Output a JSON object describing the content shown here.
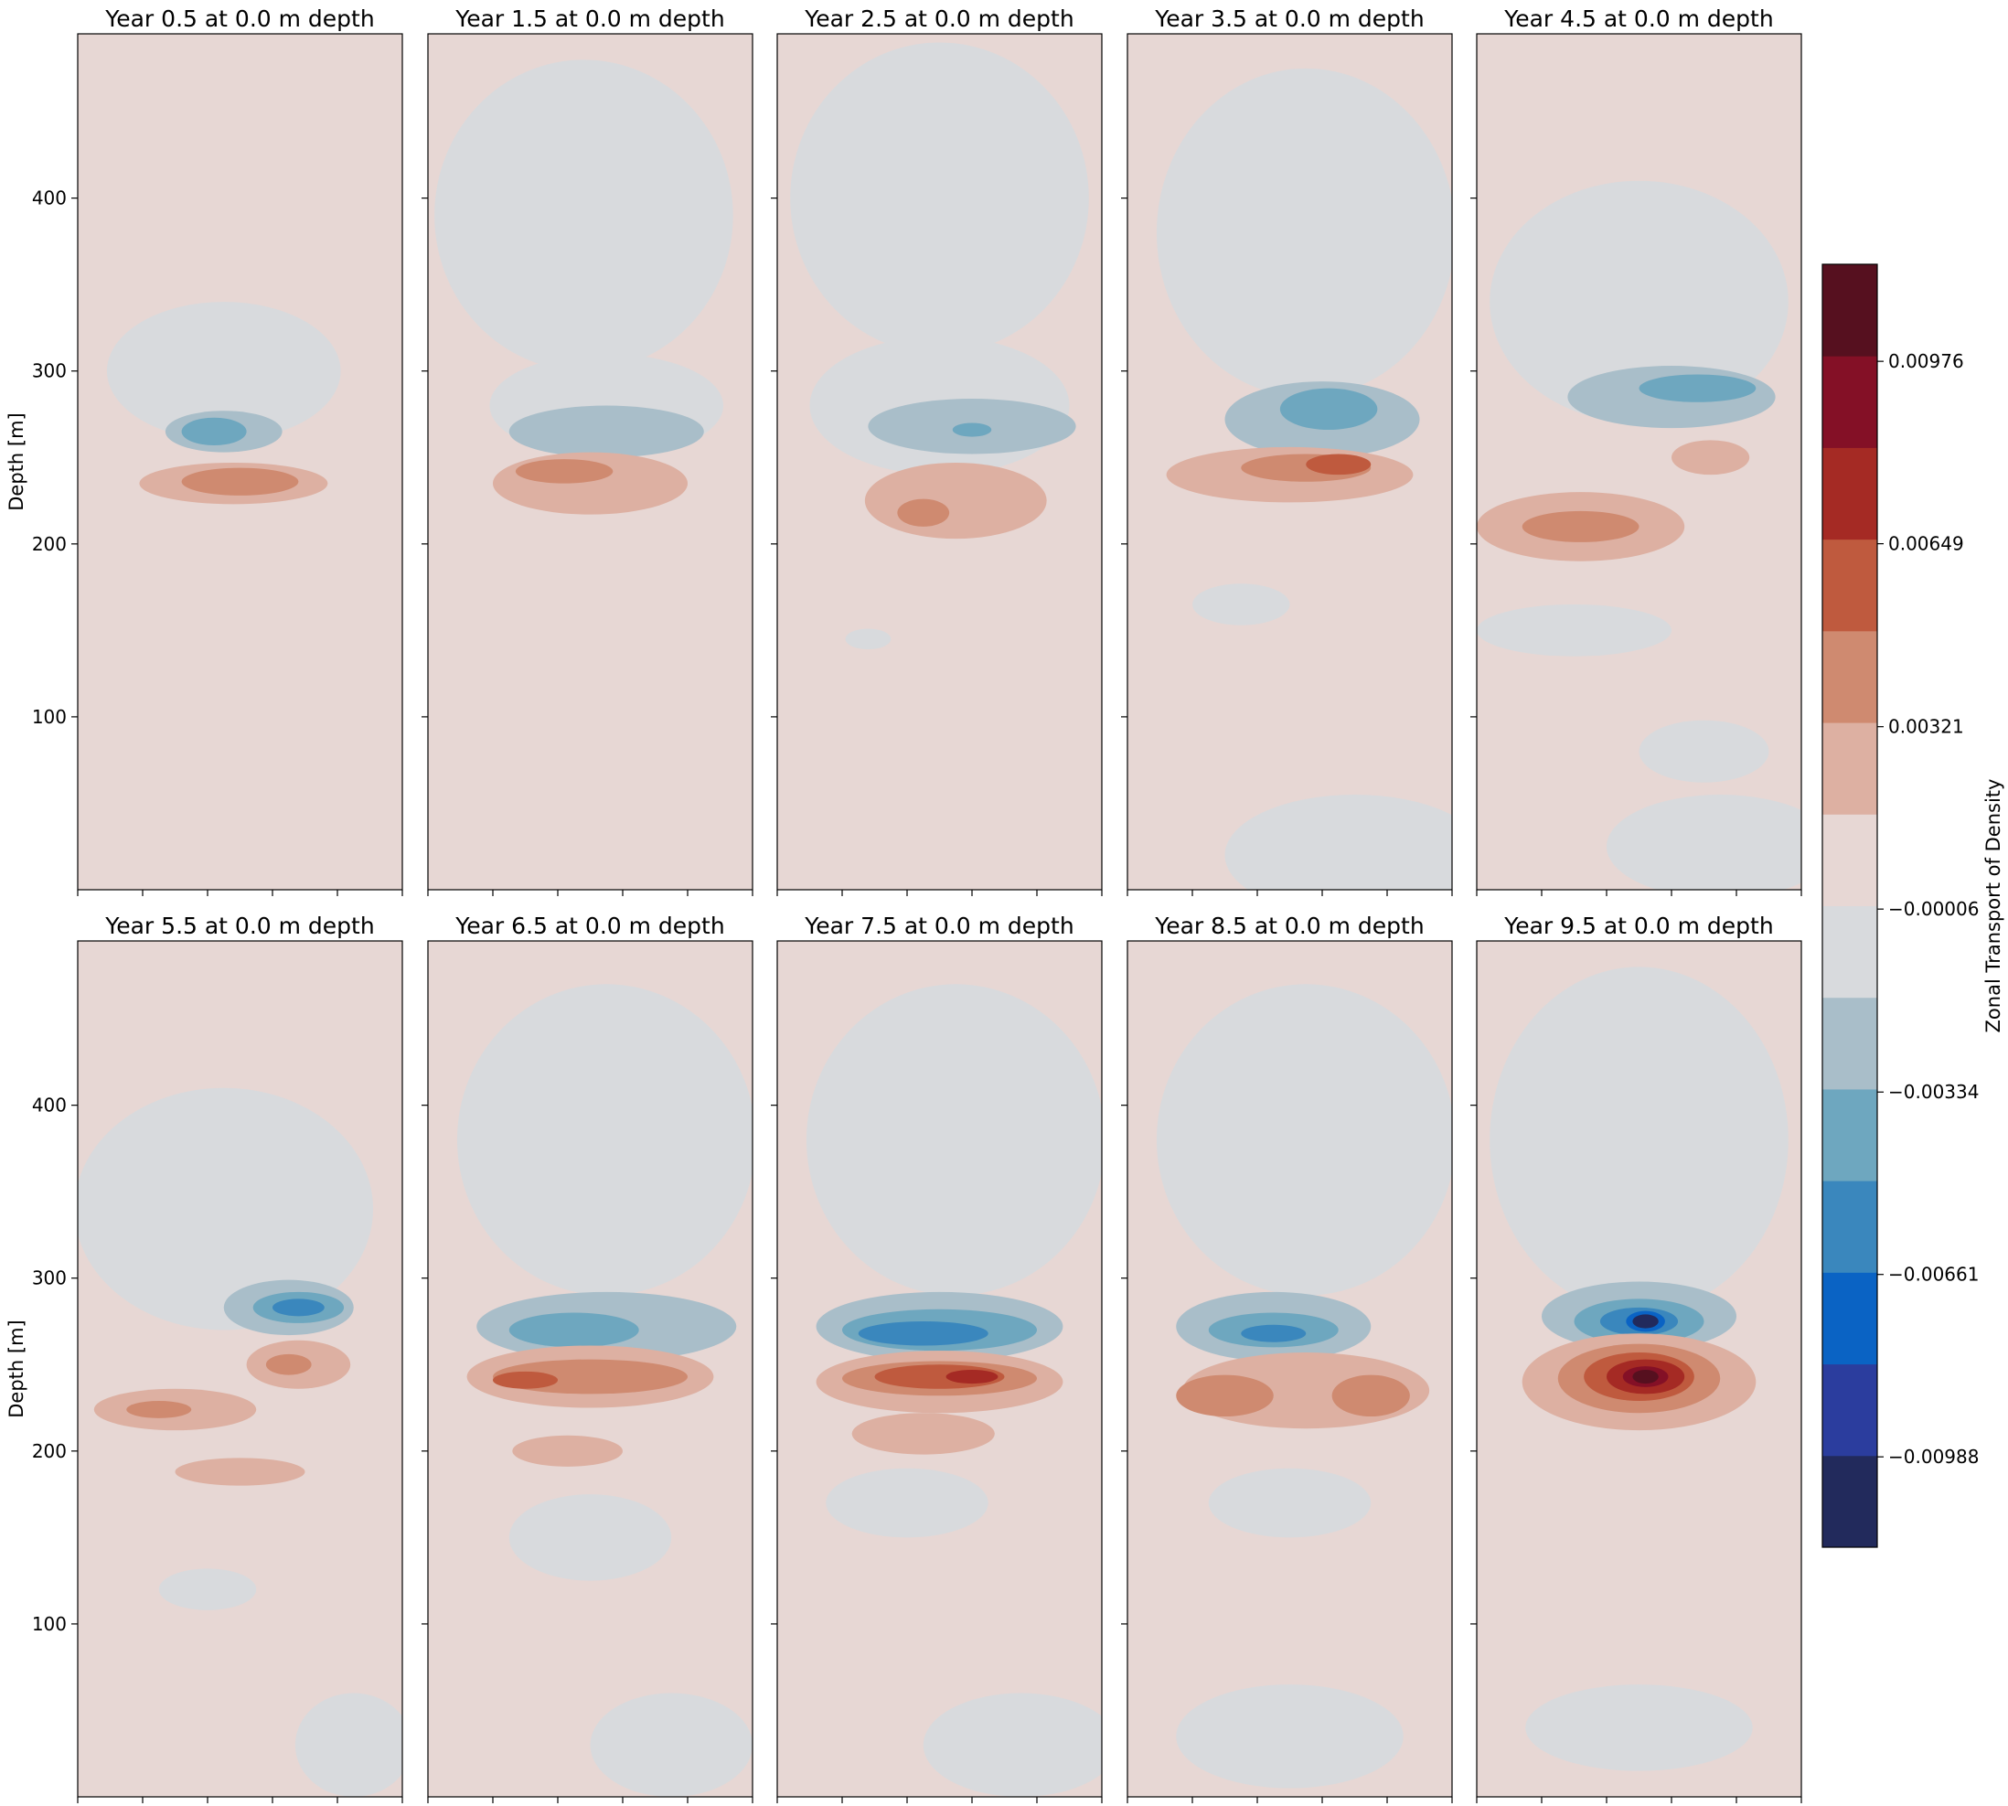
{
  "chart_data": {
    "type": "contourf",
    "colormap": "balance",
    "ylabel": "Depth [m]",
    "yticks": [
      100,
      200,
      300,
      400
    ],
    "ylim": [
      0,
      495
    ],
    "colorbar": {
      "label": "Zonal Transport of Density",
      "ticks": [
        "0.00976",
        "0.00649",
        "0.00321",
        "−0.00006",
        "−0.00334",
        "−0.00661",
        "−0.00988"
      ],
      "tick_values": [
        0.00976,
        0.00649,
        0.00321,
        -6e-05,
        -0.00334,
        -0.00661,
        -0.00988
      ],
      "range": [
        -0.0115,
        0.0115
      ],
      "level_colors": [
        "#222a5c",
        "#2b3d9e",
        "#0a63c4",
        "#3a87bd",
        "#6ea7bf",
        "#a9bec9",
        "#d8dadd",
        "#e7d7d4",
        "#ddb0a2",
        "#cf8a70",
        "#bf5a3e",
        "#a52a24",
        "#841026",
        "#56101f"
      ]
    },
    "panels": [
      {
        "title": "Year 0.5 at 0.0 m depth"
      },
      {
        "title": "Year 1.5 at 0.0 m depth"
      },
      {
        "title": "Year 2.5 at 0.0 m depth"
      },
      {
        "title": "Year 3.5 at 0.0 m depth"
      },
      {
        "title": "Year 4.5 at 0.0 m depth"
      },
      {
        "title": "Year 5.5 at 0.0 m depth"
      },
      {
        "title": "Year 6.5 at 0.0 m depth"
      },
      {
        "title": "Year 7.5 at 0.0 m depth"
      },
      {
        "title": "Year 8.5 at 0.0 m depth"
      },
      {
        "title": "Year 9.5 at 0.0 m depth"
      }
    ]
  }
}
